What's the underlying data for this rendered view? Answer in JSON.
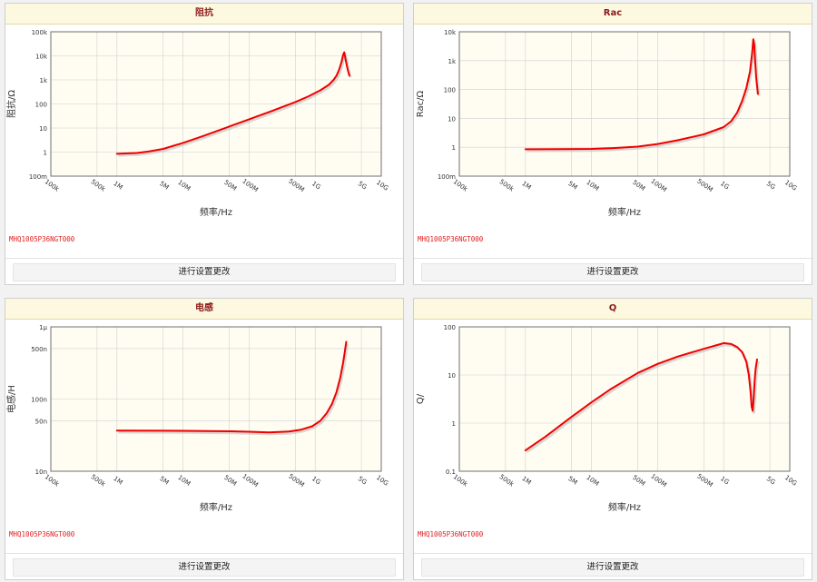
{
  "panels": [
    {
      "title": "阻抗",
      "part_number": "MHQ1005P36NGT000",
      "button_label": "进行设置更改"
    },
    {
      "title": "Rac",
      "part_number": "MHQ1005P36NGT000",
      "button_label": "进行设置更改"
    },
    {
      "title": "电感",
      "part_number": "MHQ1005P36NGT000",
      "button_label": "进行设置更改"
    },
    {
      "title": "Q",
      "part_number": "MHQ1005P36NGT000",
      "button_label": "进行设置更改"
    }
  ],
  "colors": {
    "curve": "#ee0000",
    "plot_bg": "#fffdf2",
    "grid": "#d0d0d0"
  },
  "chart_data": [
    {
      "type": "line",
      "title": "阻抗",
      "xlabel": "频率/Hz",
      "ylabel": "阻抗/Ω",
      "x_scale": "log",
      "y_scale": "log",
      "xlim": [
        100000,
        10000000000
      ],
      "ylim": [
        0.1,
        100000
      ],
      "x_tick_values": [
        100000,
        500000,
        1000000,
        5000000,
        10000000,
        50000000,
        100000000,
        500000000,
        1000000000,
        5000000000,
        10000000000
      ],
      "x_tick_labels": [
        "100k",
        "500k",
        "1M",
        "5M",
        "10M",
        "50M",
        "100M",
        "500M",
        "1G",
        "5G",
        "10G"
      ],
      "y_tick_values": [
        0.1,
        1,
        10,
        100,
        1000,
        10000,
        100000
      ],
      "y_tick_labels": [
        "100m",
        "1",
        "10",
        "100",
        "1k",
        "10k",
        "100k"
      ],
      "grid": true,
      "series": [
        {
          "x": [
            1000000,
            2000000,
            3000000,
            5000000,
            10000000,
            20000000,
            50000000,
            100000000,
            200000000,
            500000000,
            800000000,
            1200000000,
            1600000000,
            1900000000,
            2100000000,
            2300000000,
            2500000000,
            2650000000,
            2750000000,
            2900000000,
            3100000000,
            3300000000
          ],
          "y": [
            0.85,
            0.92,
            1.05,
            1.35,
            2.4,
            4.6,
            11.5,
            23,
            46,
            120,
            210,
            370,
            620,
            1000,
            1500,
            2600,
            5500,
            11000,
            14000,
            6500,
            2700,
            1500
          ]
        }
      ]
    },
    {
      "type": "line",
      "title": "Rac",
      "xlabel": "频率/Hz",
      "ylabel": "Rac/Ω",
      "x_scale": "log",
      "y_scale": "log",
      "xlim": [
        100000,
        10000000000
      ],
      "ylim": [
        0.1,
        10000
      ],
      "x_tick_values": [
        100000,
        500000,
        1000000,
        5000000,
        10000000,
        50000000,
        100000000,
        500000000,
        1000000000,
        5000000000,
        10000000000
      ],
      "x_tick_labels": [
        "100k",
        "500k",
        "1M",
        "5M",
        "10M",
        "50M",
        "100M",
        "500M",
        "1G",
        "5G",
        "10G"
      ],
      "y_tick_values": [
        0.1,
        1,
        10,
        100,
        1000,
        10000
      ],
      "y_tick_labels": [
        "100m",
        "1",
        "10",
        "100",
        "1k",
        "10k"
      ],
      "grid": true,
      "series": [
        {
          "x": [
            1000000,
            3000000,
            10000000,
            20000000,
            50000000,
            100000000,
            200000000,
            500000000,
            1000000000,
            1300000000,
            1600000000,
            1900000000,
            2200000000,
            2500000000,
            2700000000,
            2800000000,
            2900000000,
            3000000000,
            3100000000,
            3300000000
          ],
          "y": [
            0.85,
            0.86,
            0.88,
            0.93,
            1.05,
            1.3,
            1.75,
            2.8,
            5,
            8,
            16,
            40,
            110,
            420,
            1900,
            5500,
            3500,
            900,
            260,
            70
          ]
        }
      ]
    },
    {
      "type": "line",
      "title": "电感",
      "xlabel": "频率/Hz",
      "ylabel": "电感/H",
      "x_scale": "log",
      "y_scale": "log",
      "xlim": [
        100000,
        10000000000
      ],
      "ylim": [
        1e-08,
        1e-06
      ],
      "x_tick_values": [
        100000,
        500000,
        1000000,
        5000000,
        10000000,
        50000000,
        100000000,
        500000000,
        1000000000,
        5000000000,
        10000000000
      ],
      "x_tick_labels": [
        "100k",
        "500k",
        "1M",
        "5M",
        "10M",
        "50M",
        "100M",
        "500M",
        "1G",
        "5G",
        "10G"
      ],
      "y_tick_values": [
        1e-08,
        5e-08,
        1e-07,
        5e-07,
        1e-06
      ],
      "y_tick_labels": [
        "10n",
        "50n",
        "100n",
        "500n",
        "1µ"
      ],
      "grid": true,
      "series": [
        {
          "x": [
            1000000,
            5000000,
            10000000,
            50000000,
            100000000,
            200000000,
            400000000,
            600000000,
            900000000,
            1200000000,
            1500000000,
            1800000000,
            2100000000,
            2400000000,
            2650000000,
            2800000000,
            2950000000
          ],
          "y": [
            3.65e-08,
            3.64e-08,
            3.63e-08,
            3.58e-08,
            3.52e-08,
            3.45e-08,
            3.55e-08,
            3.75e-08,
            4.2e-08,
            5e-08,
            6.4e-08,
            8.6e-08,
            1.25e-07,
            2e-07,
            3.2e-07,
            4.5e-07,
            6.2e-07
          ]
        }
      ]
    },
    {
      "type": "line",
      "title": "Q",
      "xlabel": "频率/Hz",
      "ylabel": "Q/",
      "x_scale": "log",
      "y_scale": "log",
      "xlim": [
        100000,
        10000000000
      ],
      "ylim": [
        0.1,
        100
      ],
      "x_tick_values": [
        100000,
        500000,
        1000000,
        5000000,
        10000000,
        50000000,
        100000000,
        500000000,
        1000000000,
        5000000000,
        10000000000
      ],
      "x_tick_labels": [
        "100k",
        "500k",
        "1M",
        "5M",
        "10M",
        "50M",
        "100M",
        "500M",
        "1G",
        "5G",
        "10G"
      ],
      "y_tick_values": [
        0.1,
        1,
        10,
        100
      ],
      "y_tick_labels": [
        "0.1",
        "1",
        "10",
        "100"
      ],
      "grid": true,
      "series": [
        {
          "x": [
            1000000,
            2000000,
            5000000,
            10000000,
            20000000,
            50000000,
            100000000,
            200000000,
            500000000,
            800000000,
            1000000000,
            1300000000,
            1600000000,
            1900000000,
            2200000000,
            2400000000,
            2550000000,
            2650000000,
            2750000000,
            2850000000,
            2950000000,
            3050000000,
            3200000000
          ],
          "y": [
            0.27,
            0.52,
            1.35,
            2.7,
            5.2,
            11,
            17,
            24,
            35,
            42,
            46,
            44,
            38,
            30,
            19,
            10,
            4.5,
            2.2,
            1.8,
            3.5,
            8,
            14,
            21
          ]
        }
      ]
    }
  ]
}
